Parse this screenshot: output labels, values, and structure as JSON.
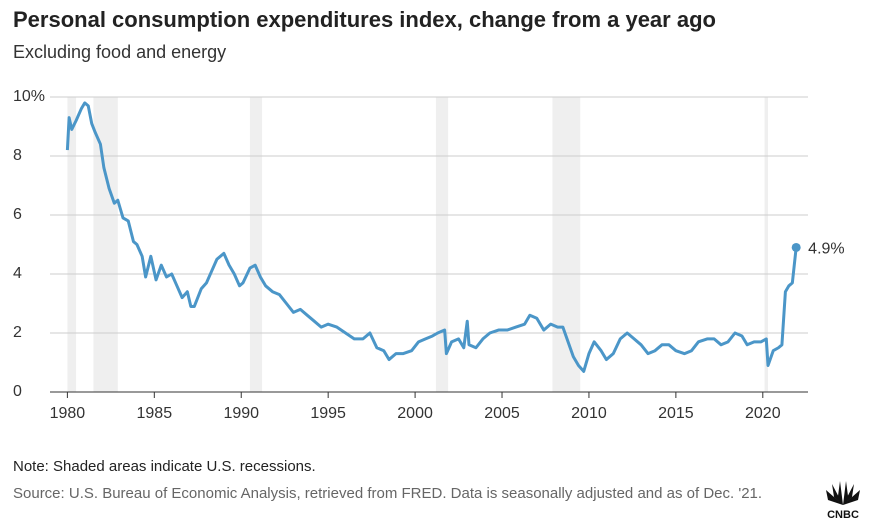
{
  "chart_data": {
    "type": "line",
    "title": "Personal consumption expenditures index, change from a year ago",
    "subtitle": "Excluding food and energy",
    "note": "Note: Shaded areas indicate U.S. recessions.",
    "source": "Source: U.S. Bureau of Economic Analysis, retrieved from FRED. Data is seasonally adjusted and as of Dec. '21.",
    "logo": "CNBC",
    "xlim": [
      1979,
      2022.6
    ],
    "xticks": [
      1980,
      1985,
      1990,
      1995,
      2000,
      2005,
      2010,
      2015,
      2020
    ],
    "ylim": [
      0,
      10
    ],
    "yticks": [
      0,
      2,
      4,
      6,
      8,
      {
        "value": 10,
        "label": "10%"
      }
    ],
    "grid": true,
    "recessions": [
      [
        1980.0,
        1980.5
      ],
      [
        1981.5,
        1982.9
      ],
      [
        1990.5,
        1991.2
      ],
      [
        2001.2,
        2001.9
      ],
      [
        2007.9,
        2009.5
      ],
      [
        2020.1,
        2020.3
      ]
    ],
    "recession_color": "#efefef",
    "series": [
      {
        "color": "#4b96c8",
        "x": [
          1980.0,
          1980.1,
          1980.25,
          1980.5,
          1980.8,
          1981.0,
          1981.2,
          1981.4,
          1981.6,
          1981.9,
          1982.1,
          1982.4,
          1982.7,
          1982.9,
          1983.2,
          1983.5,
          1983.8,
          1984.0,
          1984.3,
          1984.5,
          1984.8,
          1985.1,
          1985.4,
          1985.7,
          1986.0,
          1986.3,
          1986.6,
          1986.9,
          1987.1,
          1987.3,
          1987.7,
          1988.0,
          1988.3,
          1988.6,
          1989.0,
          1989.3,
          1989.6,
          1989.9,
          1990.1,
          1990.5,
          1990.8,
          1991.1,
          1991.4,
          1991.8,
          1992.2,
          1992.6,
          1993.0,
          1993.4,
          1993.8,
          1994.2,
          1994.6,
          1995.0,
          1995.5,
          1996.0,
          1996.5,
          1997.0,
          1997.4,
          1997.8,
          1998.2,
          1998.5,
          1998.9,
          1999.3,
          1999.8,
          2000.2,
          2000.6,
          2001.0,
          2001.3,
          2001.7,
          2001.8,
          2002.1,
          2002.5,
          2002.8,
          2003.0,
          2003.1,
          2003.5,
          2003.9,
          2004.3,
          2004.8,
          2005.3,
          2005.8,
          2006.3,
          2006.6,
          2007.0,
          2007.4,
          2007.8,
          2008.2,
          2008.5,
          2008.8,
          2009.1,
          2009.4,
          2009.7,
          2010.0,
          2010.3,
          2010.7,
          2011.0,
          2011.4,
          2011.8,
          2012.2,
          2012.6,
          2013.0,
          2013.4,
          2013.8,
          2014.2,
          2014.6,
          2015.0,
          2015.5,
          2015.9,
          2016.3,
          2016.8,
          2017.2,
          2017.6,
          2018.0,
          2018.4,
          2018.8,
          2019.1,
          2019.5,
          2019.9,
          2020.2,
          2020.3,
          2020.6,
          2020.9,
          2021.1,
          2021.3,
          2021.5,
          2021.7,
          2021.92
        ],
        "values": [
          8.2,
          9.3,
          8.9,
          9.2,
          9.6,
          9.8,
          9.7,
          9.1,
          8.8,
          8.4,
          7.6,
          6.9,
          6.4,
          6.5,
          5.9,
          5.8,
          5.1,
          5.0,
          4.6,
          3.9,
          4.6,
          3.8,
          4.3,
          3.9,
          4.0,
          3.6,
          3.2,
          3.4,
          2.9,
          2.9,
          3.5,
          3.7,
          4.1,
          4.5,
          4.7,
          4.3,
          4.0,
          3.6,
          3.7,
          4.2,
          4.3,
          3.9,
          3.6,
          3.4,
          3.3,
          3.0,
          2.7,
          2.8,
          2.6,
          2.4,
          2.2,
          2.3,
          2.2,
          2.0,
          1.8,
          1.8,
          2.0,
          1.5,
          1.4,
          1.1,
          1.3,
          1.3,
          1.4,
          1.7,
          1.8,
          1.9,
          2.0,
          2.1,
          1.3,
          1.7,
          1.8,
          1.5,
          2.4,
          1.6,
          1.5,
          1.8,
          2.0,
          2.1,
          2.1,
          2.2,
          2.3,
          2.6,
          2.5,
          2.1,
          2.3,
          2.2,
          2.2,
          1.7,
          1.2,
          0.9,
          0.7,
          1.3,
          1.7,
          1.4,
          1.1,
          1.3,
          1.8,
          2.0,
          1.8,
          1.6,
          1.3,
          1.4,
          1.6,
          1.6,
          1.4,
          1.3,
          1.4,
          1.7,
          1.8,
          1.8,
          1.6,
          1.7,
          2.0,
          1.9,
          1.6,
          1.7,
          1.7,
          1.8,
          0.9,
          1.4,
          1.5,
          1.6,
          3.4,
          3.6,
          3.7,
          4.9
        ]
      }
    ],
    "annotation": {
      "x": 2021.92,
      "y": 4.9,
      "label": "4.9%"
    }
  }
}
